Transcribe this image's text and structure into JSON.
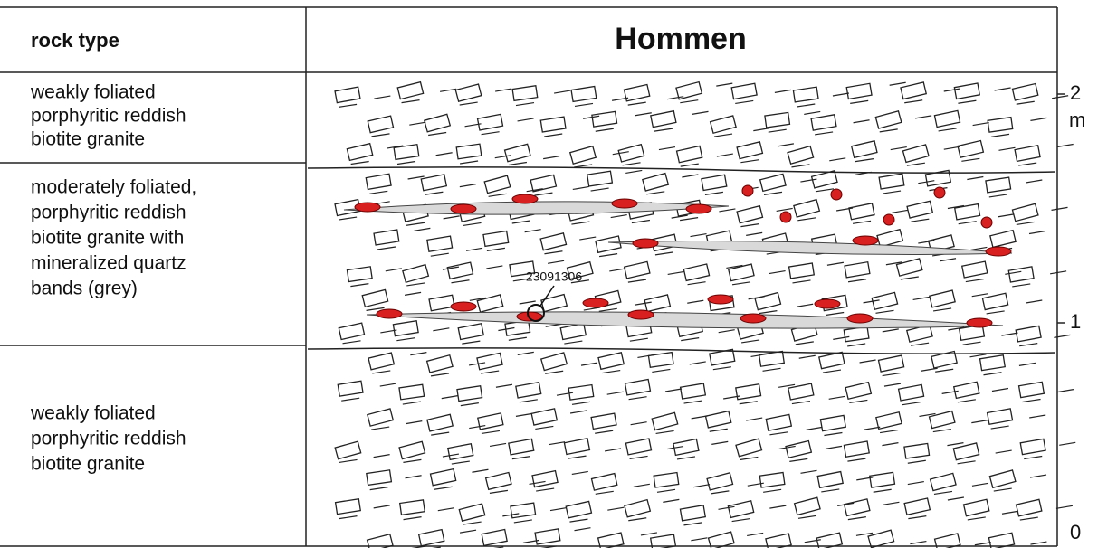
{
  "header": {
    "rock_type": "rock type",
    "title": "Hommen"
  },
  "rows": [
    {
      "lines": [
        "weakly foliated",
        "porphyritic reddish",
        "biotite granite"
      ]
    },
    {
      "lines": [
        "moderately foliated,",
        "porphyritic reddish",
        "biotite granite with",
        "mineralized quartz",
        "bands (grey)"
      ]
    },
    {
      "lines": [
        "weakly foliated",
        "porphyritic reddish",
        "biotite granite"
      ]
    }
  ],
  "scale": {
    "labels": [
      "2",
      "1",
      "0"
    ],
    "unit": "m"
  },
  "sample": "23091306"
}
